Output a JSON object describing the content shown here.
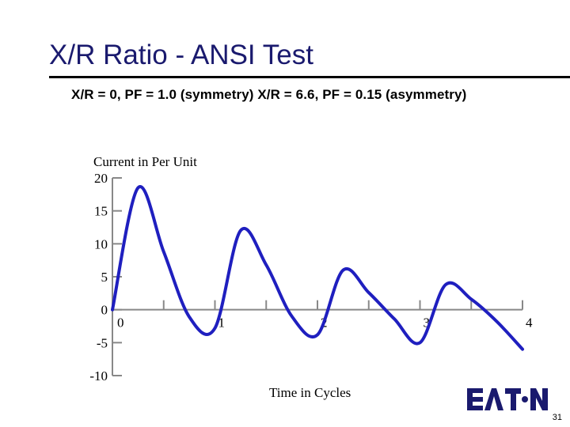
{
  "slide": {
    "title": "X/R Ratio - ANSI Test",
    "subtitle": "X/R = 0, PF = 1.0 (symmetry)   X/R = 6.6, PF = 0.15 (asymmetry)",
    "page_number": "31",
    "logo_text": "EATON"
  },
  "colors": {
    "curve": "#1f1fbf",
    "title": "#1a1a6e",
    "axis": "#888888"
  },
  "chart_data": {
    "type": "line",
    "title": "",
    "ylabel": "Current in Per Unit",
    "xlabel": "Time in Cycles",
    "ylim": [
      -10,
      20
    ],
    "xlim": [
      0,
      4
    ],
    "y_ticks": [
      "20",
      "15",
      "10",
      "5",
      "0",
      "-5",
      "-10"
    ],
    "x_ticks": [
      "0",
      "1",
      "2",
      "3",
      "4"
    ],
    "grid": false,
    "series": [
      {
        "x": [
          0,
          0.25,
          0.5,
          0.75,
          1.0,
          1.25,
          1.5,
          1.75,
          2.0,
          2.25,
          2.5,
          2.75,
          3.0,
          3.25,
          3.5,
          3.75,
          4.0
        ],
        "values": [
          0,
          18.5,
          8.8,
          -1.1,
          -2.8,
          12.0,
          6.8,
          -1.0,
          -3.8,
          6.0,
          2.6,
          -1.4,
          -5.0,
          3.8,
          1.6,
          -1.8,
          -6.0
        ]
      }
    ]
  }
}
